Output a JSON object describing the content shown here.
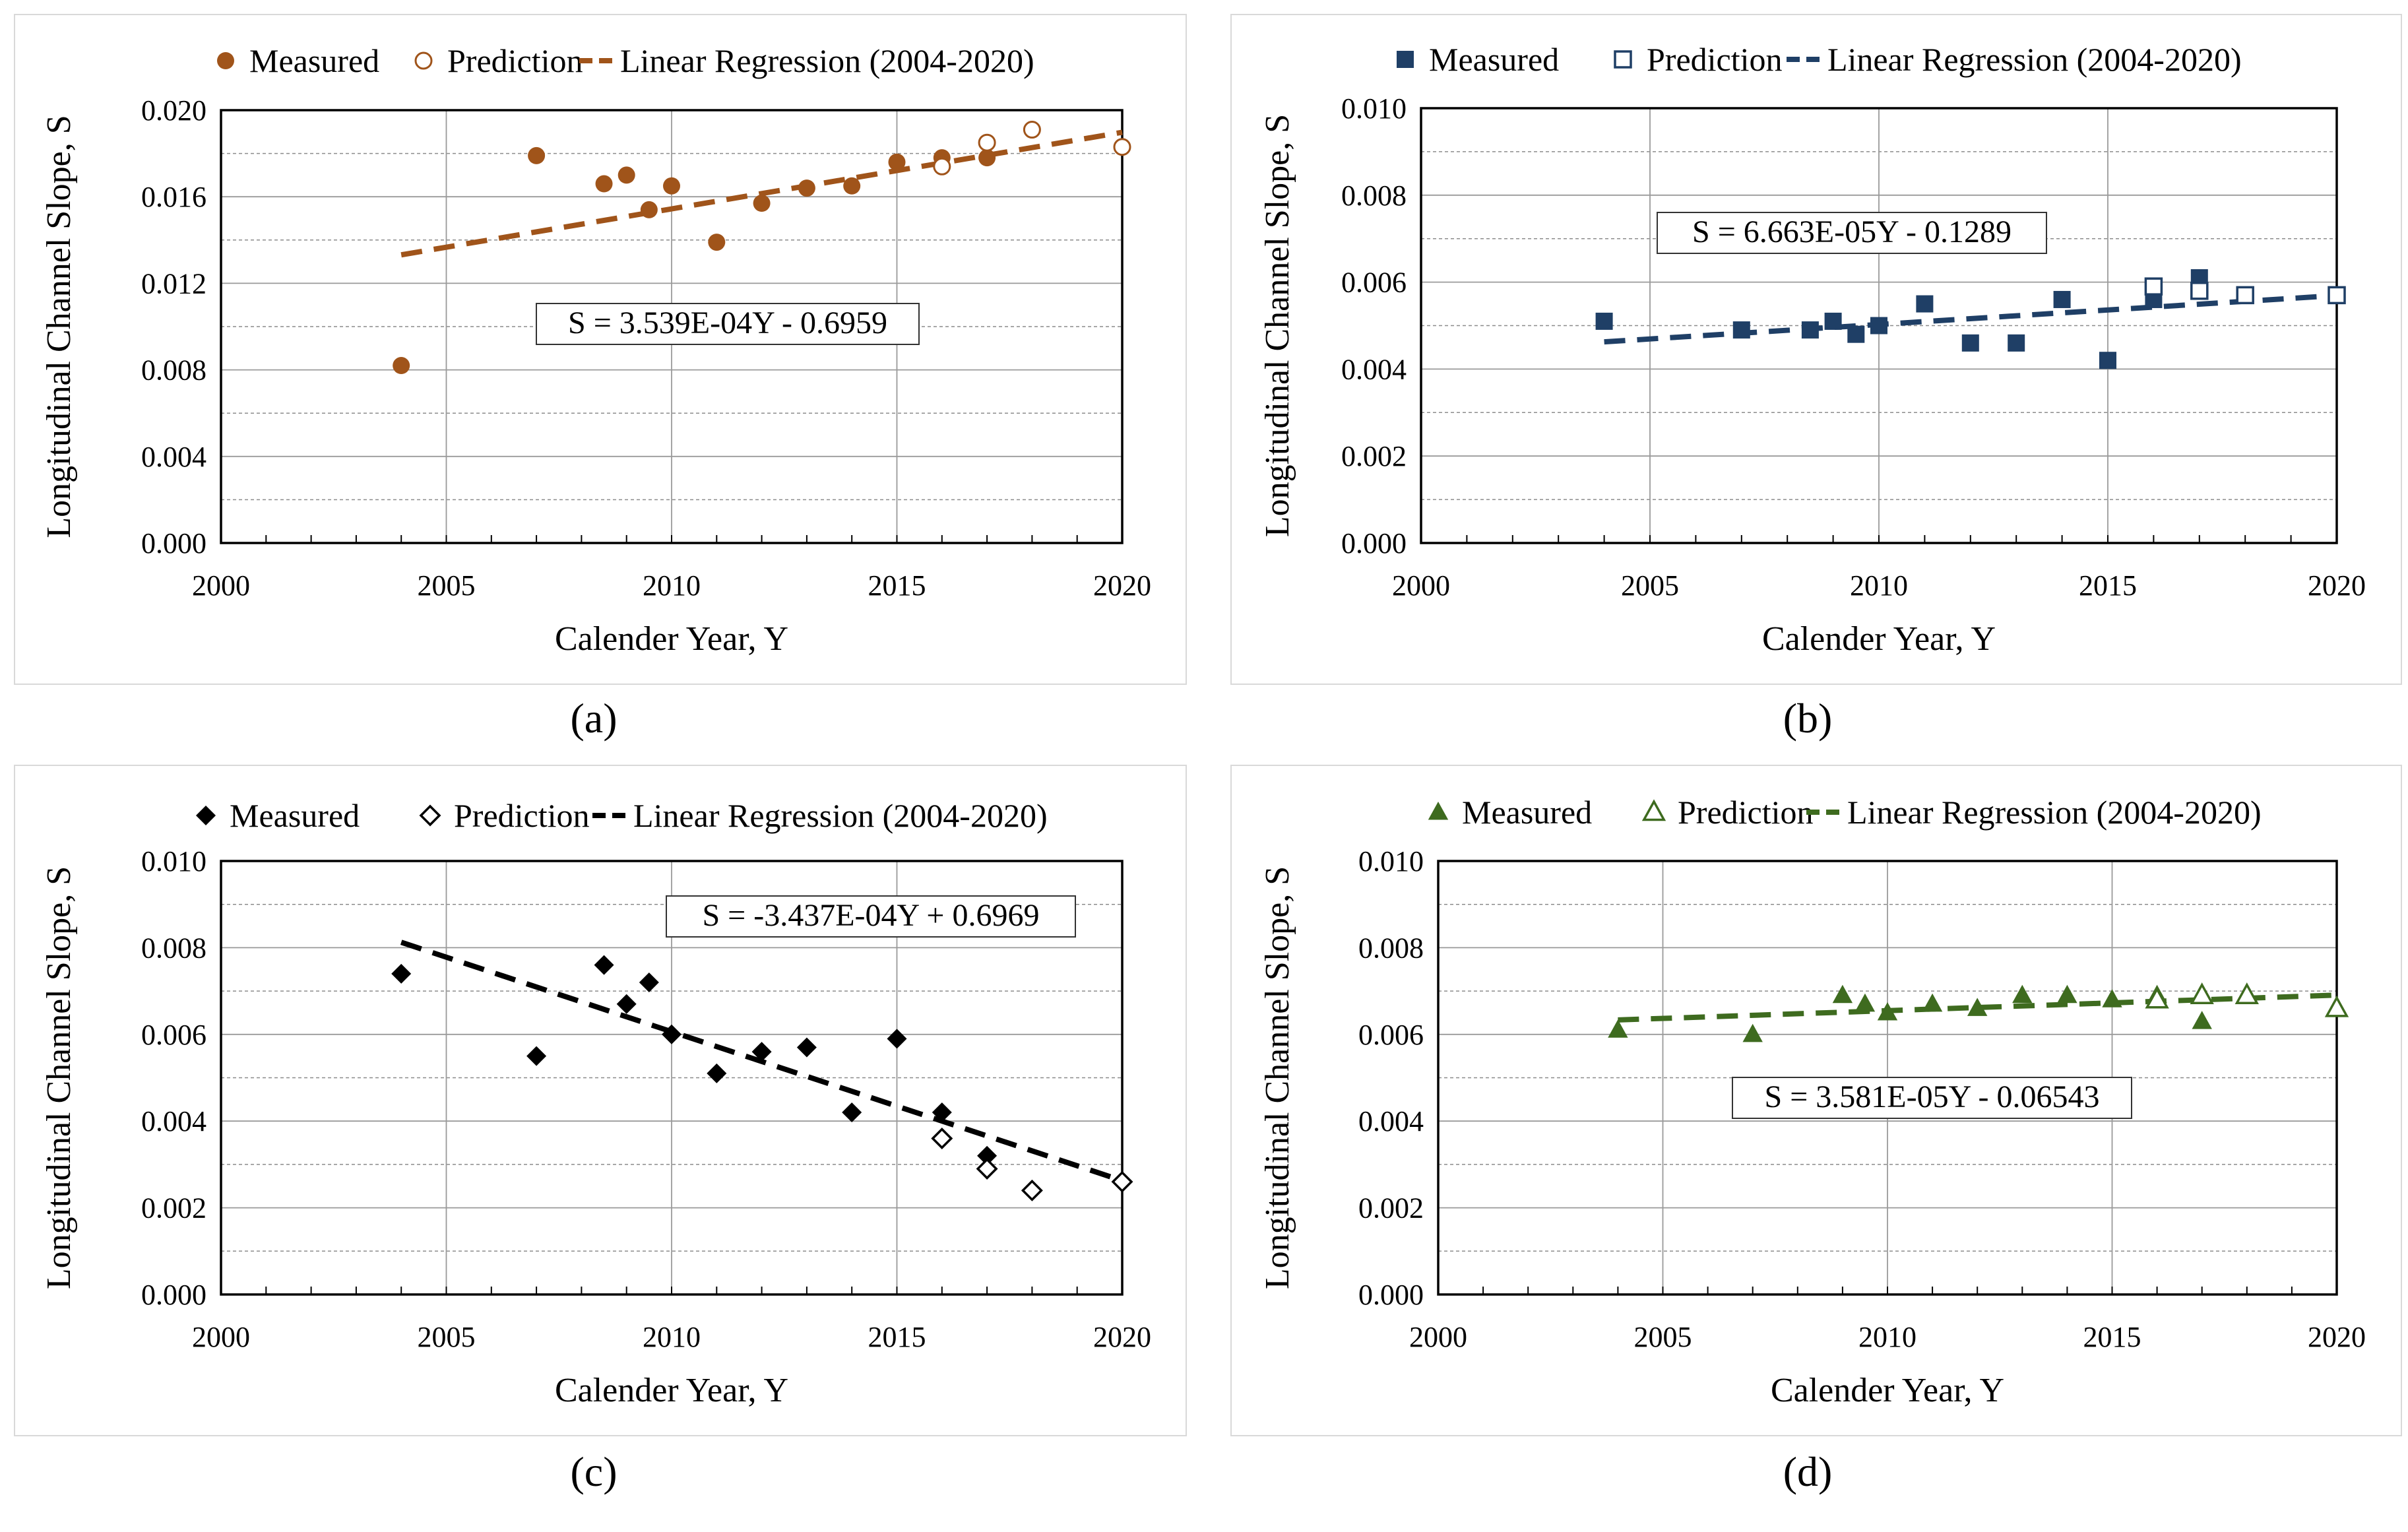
{
  "figure": {
    "panels": [
      "(a)",
      "(b)",
      "(c)",
      "(d)"
    ]
  },
  "chart_data": [
    {
      "type": "scatter",
      "id": "a",
      "label": "(a)",
      "color": "#A0541A",
      "marker": "circle",
      "legend": {
        "measured": "Measured",
        "prediction": "Prediction",
        "regression": "Linear Regression (2004-2020)"
      },
      "xlabel": "Calender Year, Y",
      "ylabel": "Longitudinal Channel Slope, S",
      "xlim": [
        2000,
        2020
      ],
      "ylim": [
        0,
        0.02
      ],
      "xticks": [
        2000,
        2005,
        2010,
        2015,
        2020
      ],
      "yticks": [
        0,
        0.004,
        0.008,
        0.012,
        0.016,
        0.02
      ],
      "xtick_labels": [
        "2000",
        "2005",
        "2010",
        "2015",
        "2020"
      ],
      "ytick_labels": [
        "0.000",
        "0.004",
        "0.008",
        "0.012",
        "0.016",
        "0.020"
      ],
      "minor_y": [
        0.002,
        0.006,
        0.01,
        0.014,
        0.018
      ],
      "equation": "S = 3.539E-04Y - 0.6959",
      "regression": {
        "slope": 0.0003539,
        "intercept": -0.6959,
        "x": [
          2004,
          2020
        ]
      },
      "measured": [
        [
          2004,
          0.0082
        ],
        [
          2007,
          0.0179
        ],
        [
          2008.5,
          0.0166
        ],
        [
          2009,
          0.017
        ],
        [
          2009.5,
          0.0154
        ],
        [
          2010,
          0.0165
        ],
        [
          2011,
          0.0139
        ],
        [
          2012,
          0.0157
        ],
        [
          2013,
          0.0164
        ],
        [
          2014,
          0.0165
        ],
        [
          2015,
          0.0176
        ],
        [
          2016,
          0.0178
        ],
        [
          2017,
          0.0178
        ]
      ],
      "prediction": [
        [
          2016,
          0.0174
        ],
        [
          2017,
          0.0185
        ],
        [
          2018,
          0.0191
        ],
        [
          2020,
          0.0183
        ]
      ]
    },
    {
      "type": "scatter",
      "id": "b",
      "label": "(b)",
      "color": "#1F3F66",
      "marker": "square",
      "legend": {
        "measured": "Measured",
        "prediction": "Prediction",
        "regression": "Linear Regression (2004-2020)"
      },
      "xlabel": "Calender Year, Y",
      "ylabel": "Longitudinal Channel Slope, S",
      "xlim": [
        2000,
        2020
      ],
      "ylim": [
        0,
        0.01
      ],
      "xticks": [
        2000,
        2005,
        2010,
        2015,
        2020
      ],
      "yticks": [
        0,
        0.002,
        0.004,
        0.006,
        0.008,
        0.01
      ],
      "xtick_labels": [
        "2000",
        "2005",
        "2010",
        "2015",
        "2020"
      ],
      "ytick_labels": [
        "0.000",
        "0.002",
        "0.004",
        "0.006",
        "0.008",
        "0.010"
      ],
      "minor_y": [
        0.001,
        0.003,
        0.005,
        0.007,
        0.009
      ],
      "equation": "S = 6.663E-05Y - 0.1289",
      "regression": {
        "slope": 6.663e-05,
        "intercept": -0.1289,
        "x": [
          2004,
          2020
        ]
      },
      "measured": [
        [
          2004,
          0.0051
        ],
        [
          2007,
          0.0049
        ],
        [
          2008.5,
          0.0049
        ],
        [
          2009,
          0.0051
        ],
        [
          2009.5,
          0.0048
        ],
        [
          2010,
          0.005
        ],
        [
          2011,
          0.0055
        ],
        [
          2012,
          0.0046
        ],
        [
          2013,
          0.0046
        ],
        [
          2014,
          0.0056
        ],
        [
          2015,
          0.0042
        ],
        [
          2016,
          0.0056
        ],
        [
          2017,
          0.0061
        ]
      ],
      "prediction": [
        [
          2016,
          0.0059
        ],
        [
          2017,
          0.0058
        ],
        [
          2018,
          0.0057
        ],
        [
          2020,
          0.0057
        ]
      ]
    },
    {
      "type": "scatter",
      "id": "c",
      "label": "(c)",
      "color": "#000000",
      "marker": "diamond",
      "legend": {
        "measured": "Measured",
        "prediction": "Prediction",
        "regression": "Linear Regression (2004-2020)"
      },
      "xlabel": "Calender Year, Y",
      "ylabel": "Longitudinal Channel Slope, S",
      "xlim": [
        2000,
        2020
      ],
      "ylim": [
        0,
        0.01
      ],
      "xticks": [
        2000,
        2005,
        2010,
        2015,
        2020
      ],
      "yticks": [
        0,
        0.002,
        0.004,
        0.006,
        0.008,
        0.01
      ],
      "xtick_labels": [
        "2000",
        "2005",
        "2010",
        "2015",
        "2020"
      ],
      "ytick_labels": [
        "0.000",
        "0.002",
        "0.004",
        "0.006",
        "0.008",
        "0.010"
      ],
      "minor_y": [
        0.001,
        0.003,
        0.005,
        0.007,
        0.009
      ],
      "equation": "S = -3.437E-04Y + 0.6969",
      "regression": {
        "slope": -0.0003437,
        "intercept": 0.6969,
        "x": [
          2004,
          2020
        ]
      },
      "measured": [
        [
          2004,
          0.0074
        ],
        [
          2007,
          0.0055
        ],
        [
          2008.5,
          0.0076
        ],
        [
          2009,
          0.0067
        ],
        [
          2009.5,
          0.0072
        ],
        [
          2010,
          0.006
        ],
        [
          2011,
          0.0051
        ],
        [
          2012,
          0.0056
        ],
        [
          2013,
          0.0057
        ],
        [
          2014,
          0.0042
        ],
        [
          2015,
          0.0059
        ],
        [
          2016,
          0.0042
        ],
        [
          2017,
          0.0032
        ]
      ],
      "prediction": [
        [
          2016,
          0.0036
        ],
        [
          2017,
          0.0029
        ],
        [
          2018,
          0.0024
        ],
        [
          2020,
          0.0026
        ]
      ]
    },
    {
      "type": "scatter",
      "id": "d",
      "label": "(d)",
      "color": "#3E6B1F",
      "marker": "triangle",
      "legend": {
        "measured": "Measured",
        "prediction": "Prediction",
        "regression": "Linear Regression (2004-2020)"
      },
      "xlabel": "Calender Year, Y",
      "ylabel": "Longitudinal Channel Slope, S",
      "xlim": [
        2000,
        2020
      ],
      "ylim": [
        0,
        0.01
      ],
      "xticks": [
        2000,
        2005,
        2010,
        2015,
        2020
      ],
      "yticks": [
        0,
        0.002,
        0.004,
        0.006,
        0.008,
        0.01
      ],
      "xtick_labels": [
        "2000",
        "2005",
        "2010",
        "2015",
        "2020"
      ],
      "ytick_labels": [
        "0.000",
        "0.002",
        "0.004",
        "0.006",
        "0.008",
        "0.010"
      ],
      "minor_y": [
        0.001,
        0.003,
        0.005,
        0.007,
        0.009
      ],
      "equation": "S = 3.581E-05Y - 0.06543",
      "regression": {
        "slope": 3.581e-05,
        "intercept": -0.06543,
        "x": [
          2004,
          2020
        ]
      },
      "measured": [
        [
          2004,
          0.0061
        ],
        [
          2007,
          0.006
        ],
        [
          2009,
          0.0069
        ],
        [
          2009.5,
          0.0067
        ],
        [
          2010,
          0.0065
        ],
        [
          2011,
          0.0067
        ],
        [
          2012,
          0.0066
        ],
        [
          2013,
          0.0069
        ],
        [
          2014,
          0.0069
        ],
        [
          2015,
          0.0068
        ],
        [
          2016,
          0.0069
        ],
        [
          2017,
          0.0063
        ]
      ],
      "prediction": [
        [
          2016,
          0.0068
        ],
        [
          2017,
          0.0069
        ],
        [
          2018,
          0.0069
        ],
        [
          2020,
          0.0066
        ]
      ]
    }
  ]
}
